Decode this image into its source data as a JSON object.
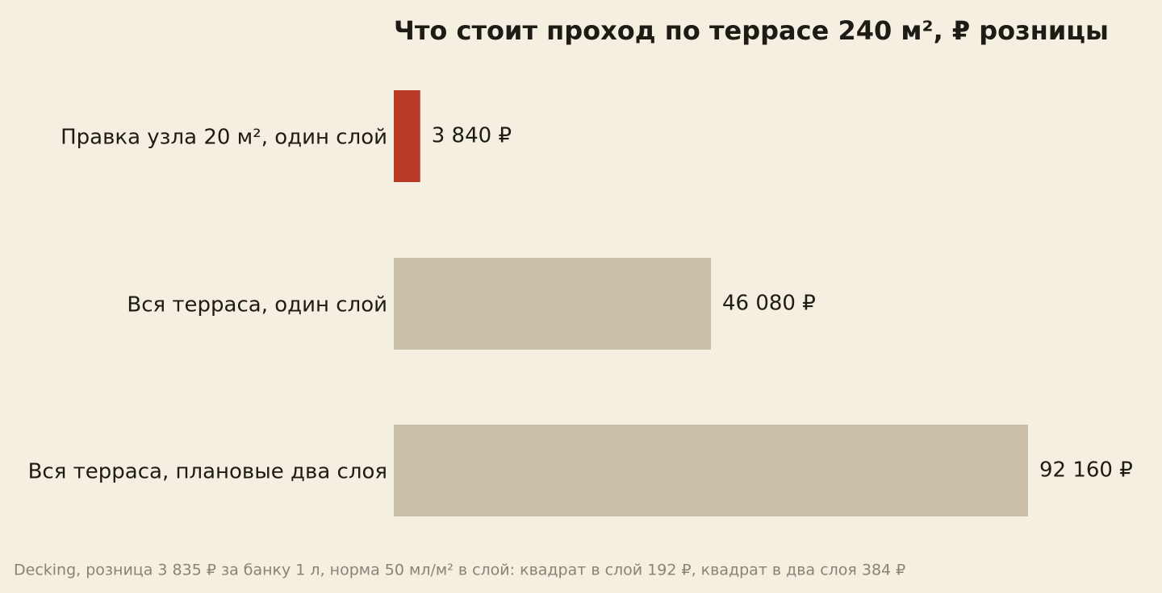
{
  "chart_data": {
    "type": "barh",
    "title": "Что стоит проход по террасе 240 м², ₽ розницы",
    "categories": [
      "Правка узла 20 м², один слой",
      "Вся терраса, один слой",
      "Вся терраса, плановые два слоя"
    ],
    "values": [
      3840,
      46080,
      92160
    ],
    "value_labels": [
      "3 840 ₽",
      "46 080 ₽",
      "92 160 ₽"
    ],
    "colors": [
      "#b83a25",
      "#c9bfa8",
      "#c9bfa8"
    ],
    "footnote": "Decking, розница 3 835 ₽ за банку 1 л, норма 50 мл/м² в слой: квадрат в слой 192 ₽, квадрат в два слоя 384 ₽"
  }
}
